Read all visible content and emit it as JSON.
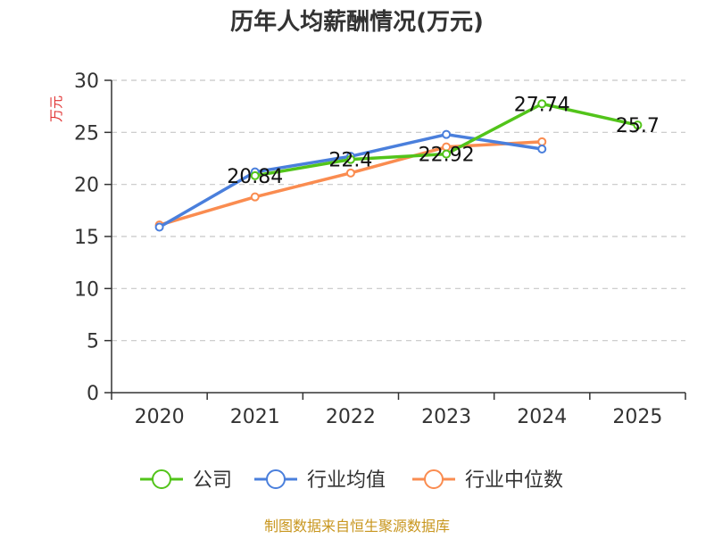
{
  "chart_data": {
    "type": "line",
    "title": "历年人均薪酬情况(万元)",
    "ylabel": "万元",
    "xlabel": "",
    "categories": [
      "2020",
      "2021",
      "2022",
      "2023",
      "2024",
      "2025"
    ],
    "ylim": [
      0,
      30
    ],
    "yticks": [
      "0",
      "5",
      "10",
      "15",
      "20",
      "25",
      "30"
    ],
    "grid": true,
    "legend_position": "bottom",
    "series": [
      {
        "name": "公司",
        "color": "#52c41a",
        "values": [
          null,
          20.84,
          22.4,
          22.92,
          27.74,
          25.7
        ],
        "labels": [
          "",
          "20.84",
          "22.4",
          "22.92",
          "27.74",
          "25.7"
        ]
      },
      {
        "name": "行业均值",
        "color": "#4a7fdc",
        "values": [
          15.9,
          21.2,
          22.7,
          24.8,
          23.4,
          null
        ]
      },
      {
        "name": "行业中位数",
        "color": "#fa8c50",
        "values": [
          16.1,
          18.8,
          21.1,
          23.6,
          24.1,
          null
        ]
      }
    ]
  },
  "footer": {
    "source": "制图数据来自恒生聚源数据库"
  }
}
